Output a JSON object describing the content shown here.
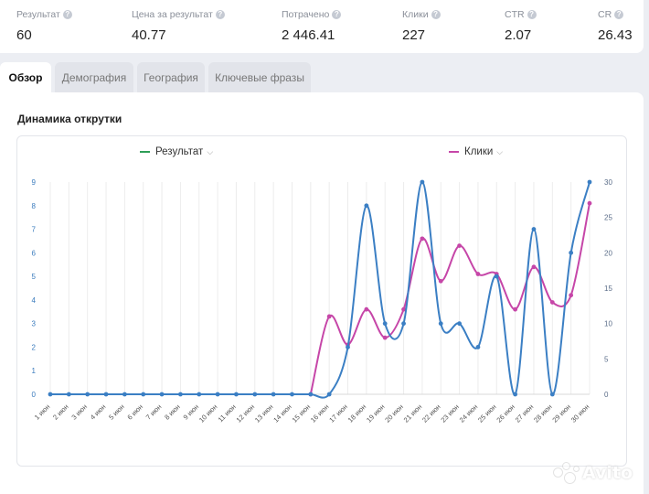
{
  "stats": [
    {
      "label": "Результат",
      "value": "60"
    },
    {
      "label": "Цена за результат",
      "value": "40.77"
    },
    {
      "label": "Потрачено",
      "value": "2 446.41"
    },
    {
      "label": "Клики",
      "value": "227"
    },
    {
      "label": "CTR",
      "value": "2.07"
    },
    {
      "label": "CR",
      "value": "26.43"
    }
  ],
  "tabs": [
    {
      "label": "Обзор",
      "active": true
    },
    {
      "label": "Демография",
      "active": false
    },
    {
      "label": "География",
      "active": false
    },
    {
      "label": "Ключевые фразы",
      "active": false
    }
  ],
  "panel": {
    "title": "Динамика открутки"
  },
  "watermark": "Avito",
  "colors": {
    "series_result": "#3b7fc4",
    "series_clicks": "#c646a8",
    "legend_result": "#2e9e57",
    "legend_clicks": "#c646a8"
  },
  "chart_data": {
    "type": "line",
    "x": [
      "1 июн",
      "2 июн",
      "3 июн",
      "4 июн",
      "5 июн",
      "6 июн",
      "7 июн",
      "8 июн",
      "9 июн",
      "10 июн",
      "11 июн",
      "12 июн",
      "13 июн",
      "14 июн",
      "15 июн",
      "16 июн",
      "17 июн",
      "18 июн",
      "19 июн",
      "20 июн",
      "21 июн",
      "22 июн",
      "23 июн",
      "24 июн",
      "25 июн",
      "26 июн",
      "27 июн",
      "28 июн",
      "29 июн",
      "30 июн"
    ],
    "series": [
      {
        "name": "Результат",
        "axis": "left",
        "values": [
          0,
          0,
          0,
          0,
          0,
          0,
          0,
          0,
          0,
          0,
          0,
          0,
          0,
          0,
          0,
          0,
          2,
          8,
          3,
          3,
          9,
          3,
          3,
          2,
          5,
          0,
          7,
          0,
          6,
          9
        ]
      },
      {
        "name": "Клики",
        "axis": "right",
        "values": [
          0,
          0,
          0,
          0,
          0,
          0,
          0,
          0,
          0,
          0,
          0,
          0,
          0,
          0,
          0,
          11,
          7,
          12,
          8,
          12,
          22,
          16,
          21,
          17,
          17,
          12,
          18,
          13,
          14,
          27
        ]
      }
    ],
    "y_left": {
      "ticks": [
        0,
        1,
        2,
        3,
        4,
        5,
        6,
        7,
        8,
        9
      ],
      "ylim": [
        0,
        9
      ]
    },
    "y_right": {
      "ticks": [
        0,
        5,
        10,
        15,
        20,
        25,
        30
      ],
      "ylim": [
        0,
        30
      ]
    },
    "legend": "top",
    "grid": "vertical"
  }
}
